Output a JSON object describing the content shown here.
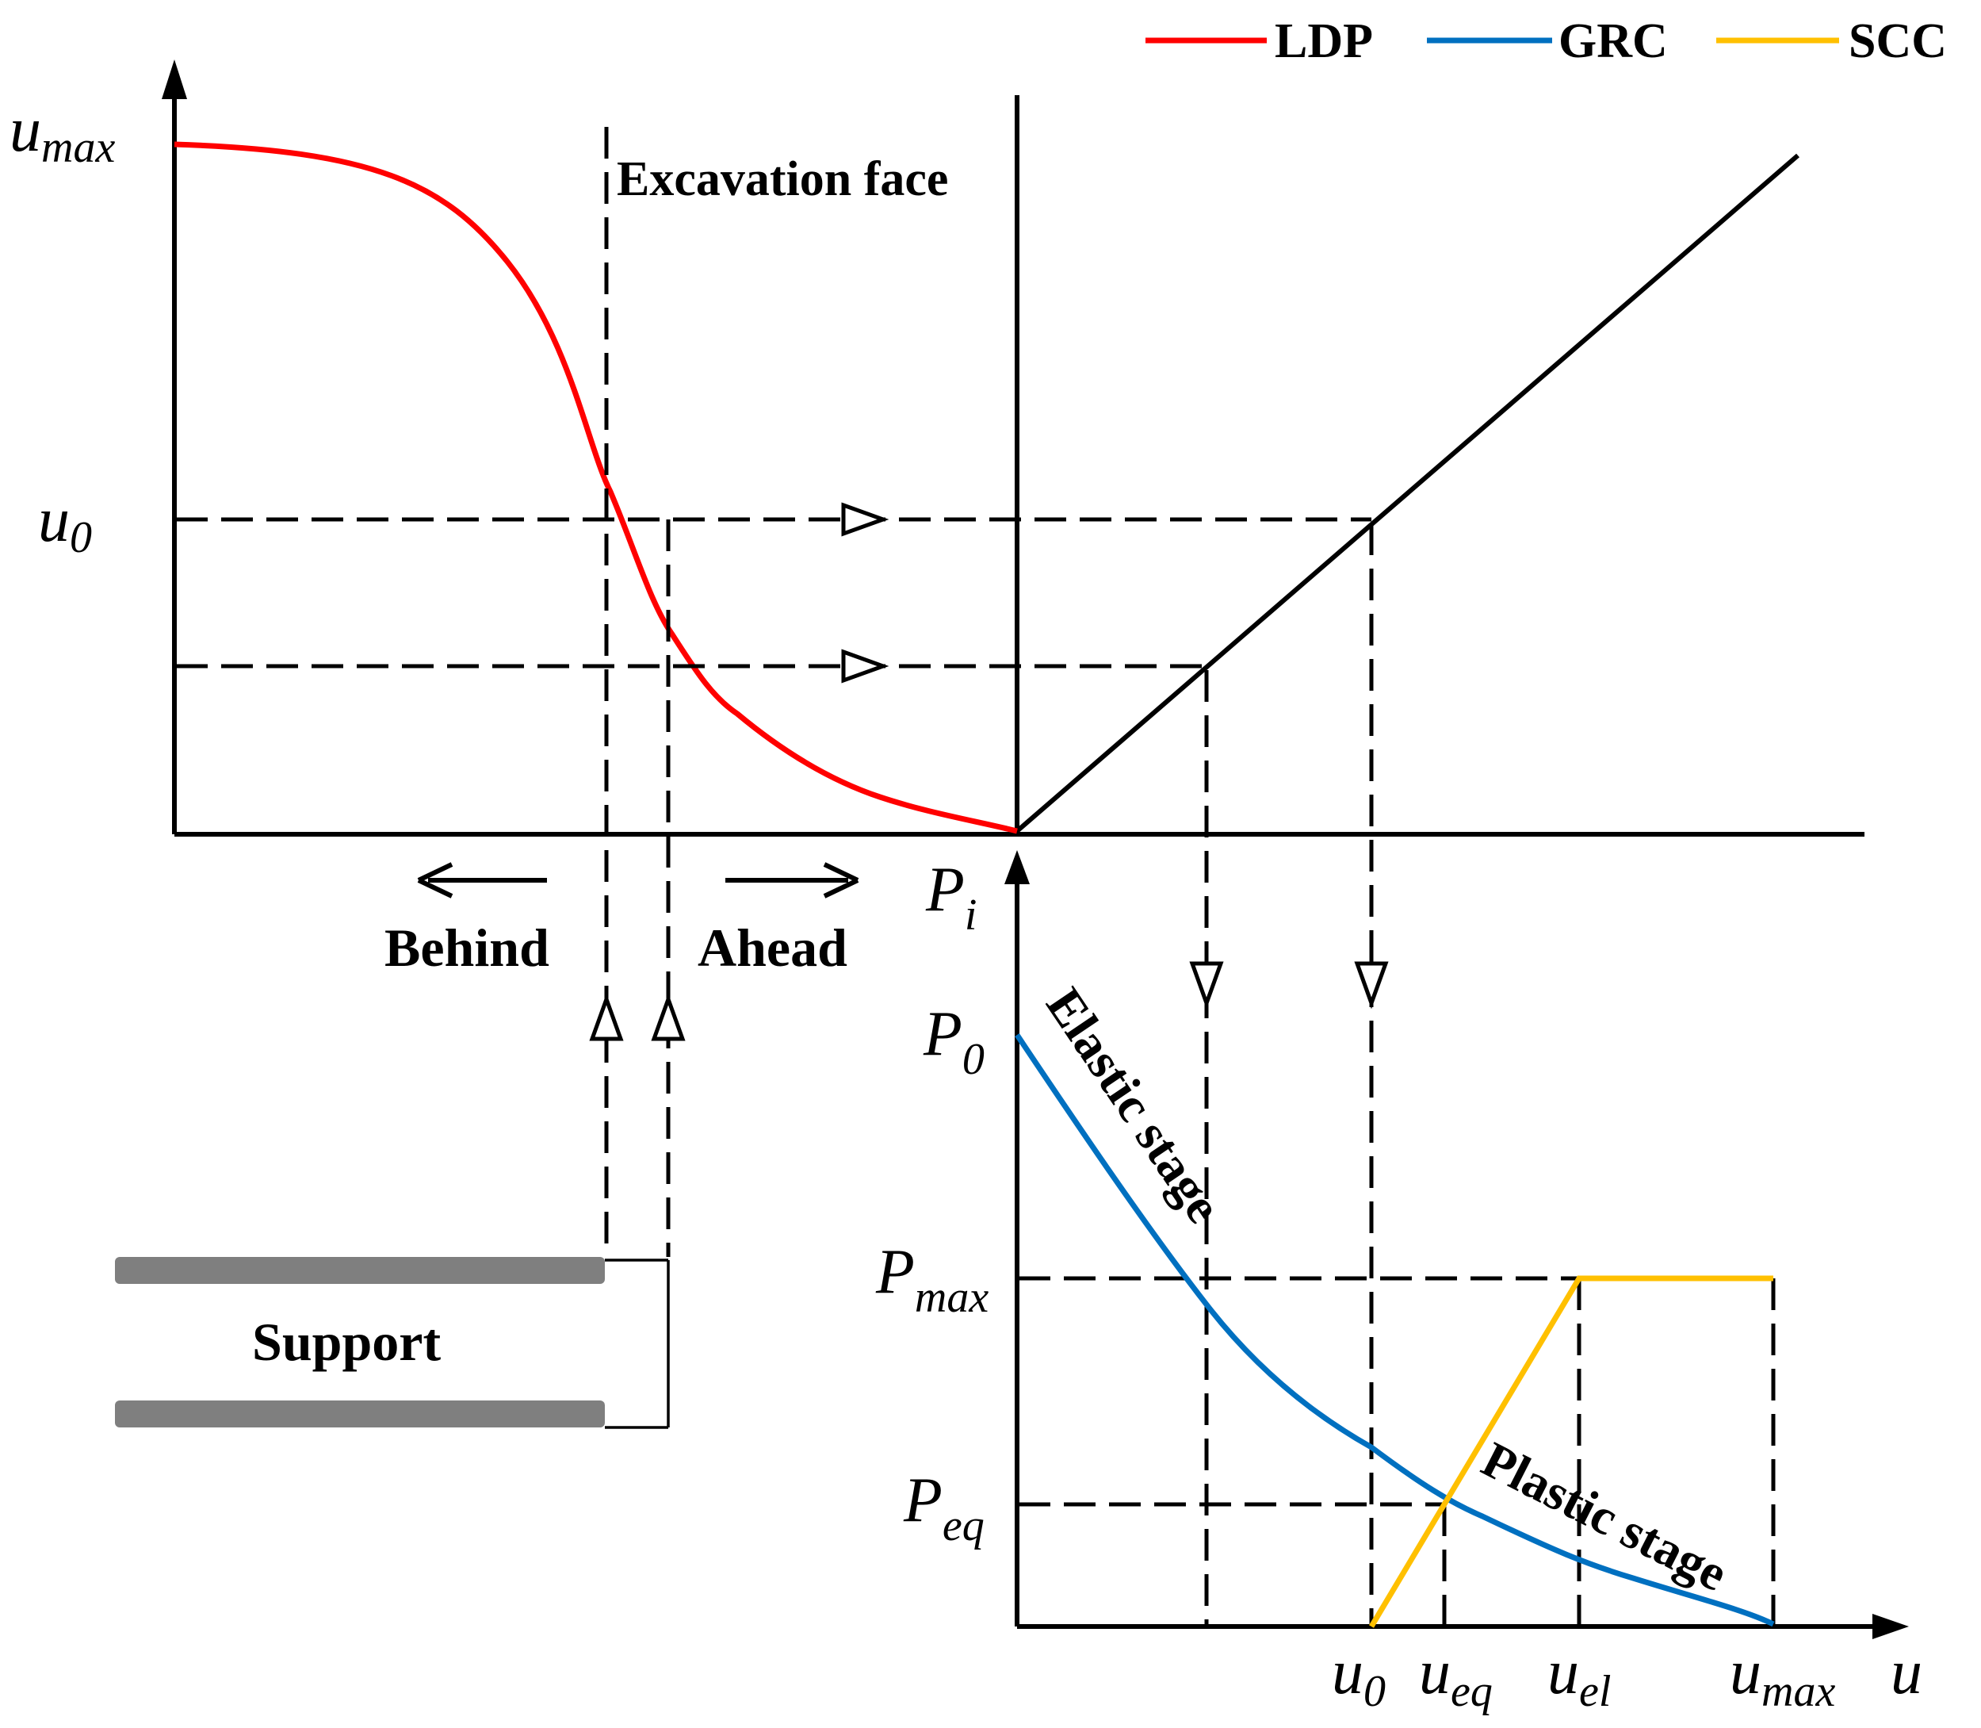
{
  "legend": {
    "items": [
      {
        "label": "LDP",
        "color": "#ff0000"
      },
      {
        "label": "GRC",
        "color": "#0070c0"
      },
      {
        "label": "SCC",
        "color": "#ffc000"
      }
    ]
  },
  "labels": {
    "umax_left": {
      "main": "u",
      "sub": "max"
    },
    "u0_left": {
      "main": "u",
      "sub": "0"
    },
    "excavation_face": "Excavation face",
    "behind": "Behind",
    "ahead": "Ahead",
    "support": "Support",
    "pi": {
      "main": "P",
      "sub": "i"
    },
    "p0": {
      "main": "P",
      "sub": "0"
    },
    "pmax": {
      "main": "P",
      "sub": "max"
    },
    "peq": {
      "main": "P",
      "sub": "eq"
    },
    "u0_bottom": {
      "main": "u",
      "sub": "0"
    },
    "ueq_bottom": {
      "main": "u",
      "sub": "eq"
    },
    "uel_bottom": {
      "main": "u",
      "sub": "el"
    },
    "umax_bottom": {
      "main": "u",
      "sub": "max"
    },
    "u_axis": "u",
    "elastic_stage": "Elastic stage",
    "plastic_stage": "Plastic stage"
  },
  "colors": {
    "ldp": "#ff0000",
    "grc": "#0070c0",
    "scc": "#ffc000",
    "support_bar": "#7f7f7f",
    "line": "#000000"
  }
}
